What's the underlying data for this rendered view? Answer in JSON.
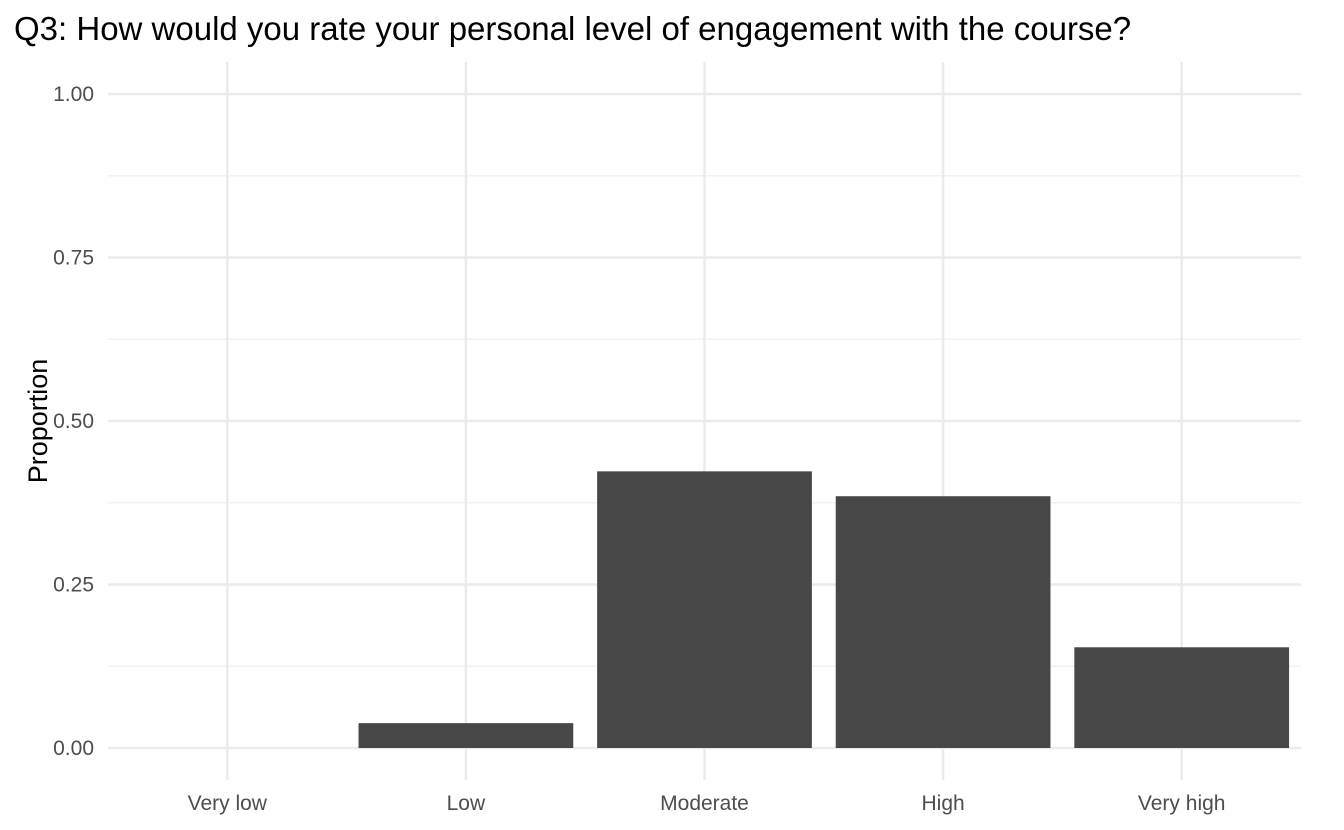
{
  "chart_data": {
    "type": "bar",
    "title": "Q3: How would you rate your personal level of engagement with the course?",
    "xlabel": "",
    "ylabel": "Proportion",
    "categories": [
      "Very low",
      "Low",
      "Moderate",
      "High",
      "Very high"
    ],
    "values": [
      0.0,
      0.038,
      0.423,
      0.385,
      0.154
    ],
    "ylim": [
      0,
      1
    ],
    "yticks": [
      0,
      0.25,
      0.5,
      0.75,
      1.0
    ],
    "ytick_labels": [
      "0.00",
      "0.25",
      "0.50",
      "0.75",
      "1.00"
    ],
    "grid": true,
    "legend": "none",
    "bar_color": "#474747",
    "grid_major_color": "#ebebeb",
    "grid_minor_color": "#f2f2f2"
  }
}
